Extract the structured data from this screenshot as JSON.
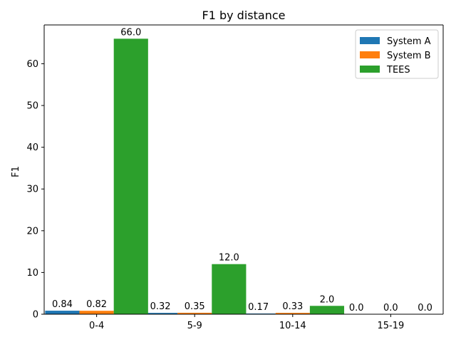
{
  "chart_data": {
    "type": "bar",
    "title": "F1 by distance",
    "xlabel": "",
    "ylabel": "F1",
    "categories": [
      "0-4",
      "5-9",
      "10-14",
      "15-19"
    ],
    "series": [
      {
        "name": "System A",
        "color": "#1f77b4",
        "values": [
          0.84,
          0.32,
          0.17,
          0.0
        ],
        "labels": [
          "0.84",
          "0.32",
          "0.17",
          "0.0"
        ]
      },
      {
        "name": "System B",
        "color": "#ff7f0e",
        "values": [
          0.82,
          0.35,
          0.33,
          0.0
        ],
        "labels": [
          "0.82",
          "0.35",
          "0.33",
          "0.0"
        ]
      },
      {
        "name": "TEES",
        "color": "#2ca02c",
        "values": [
          66.0,
          12.0,
          2.0,
          0.0
        ],
        "labels": [
          "66.0",
          "12.0",
          "2.0",
          "0.0"
        ]
      }
    ],
    "ylim": [
      0,
      69.3
    ],
    "yticks": [
      0,
      10,
      20,
      30,
      40,
      50,
      60
    ],
    "grid": false,
    "legend_position": "top-right"
  }
}
